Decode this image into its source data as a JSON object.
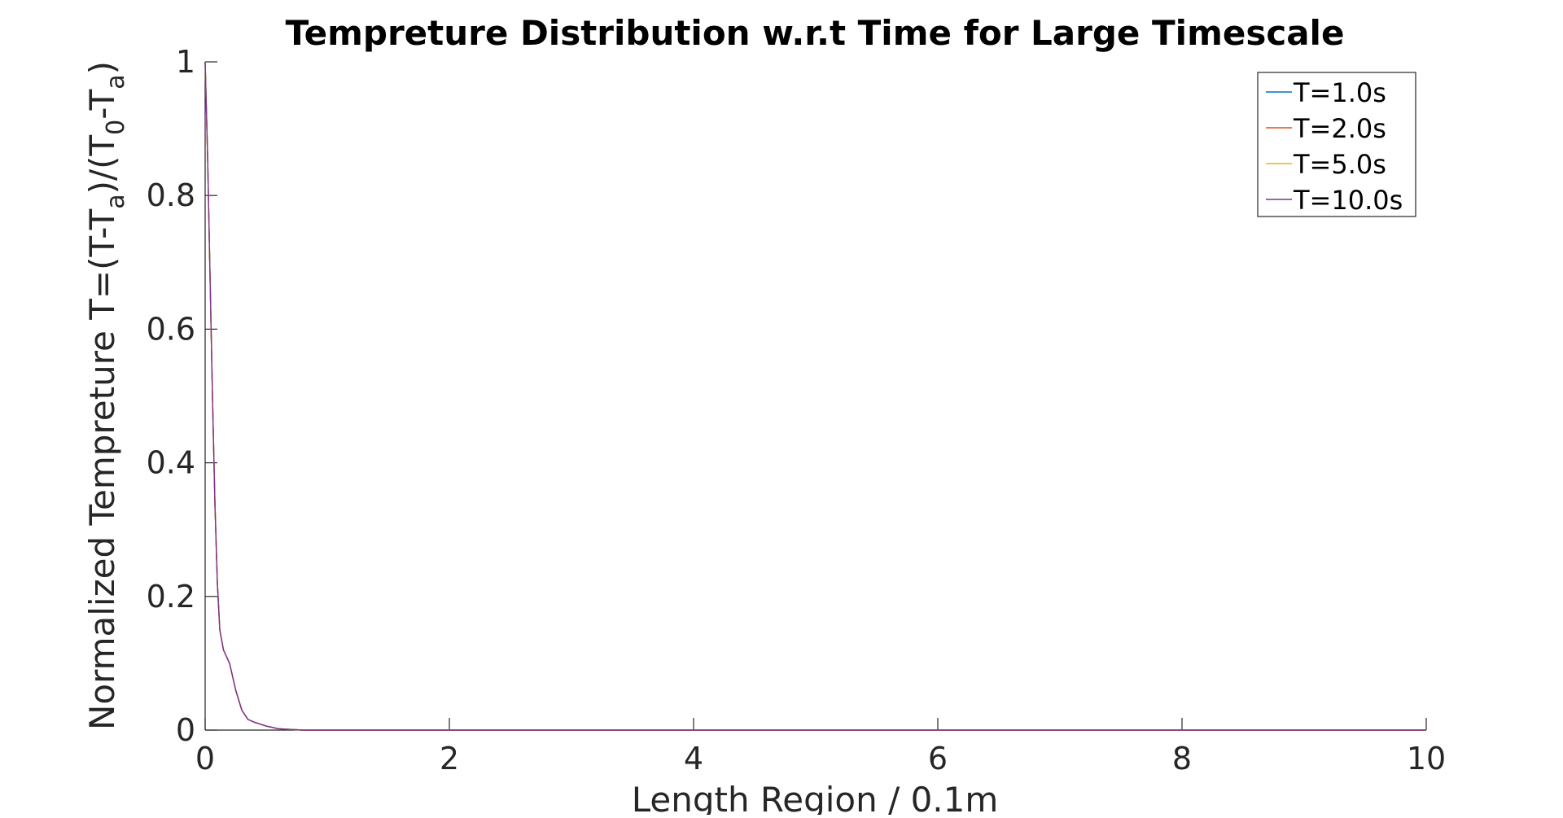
{
  "chart_data": {
    "type": "line",
    "title": "Tempreture Distribution w.r.t Time for Large Timescale",
    "xlabel": "Length Region / 0.1m",
    "ylabel": {
      "parts": [
        {
          "text": "Normalized Tempreture T=(T-T",
          "sub": false
        },
        {
          "text": "a",
          "sub": true
        },
        {
          "text": ")/(T",
          "sub": false
        },
        {
          "text": "0",
          "sub": true
        },
        {
          "text": "-T",
          "sub": false
        },
        {
          "text": "a",
          "sub": true
        },
        {
          "text": ")",
          "sub": false
        }
      ]
    },
    "xlim": [
      0,
      10
    ],
    "ylim": [
      0,
      1
    ],
    "xticks": [
      0,
      2,
      4,
      6,
      8,
      10
    ],
    "yticks": [
      0,
      0.2,
      0.4,
      0.6,
      0.8,
      1
    ],
    "xtick_labels": [
      "0",
      "2",
      "4",
      "6",
      "8",
      "10"
    ],
    "ytick_labels": [
      "0",
      "0.2",
      "0.4",
      "0.6",
      "0.8",
      "1"
    ],
    "grid": false,
    "legend_position": "top-right",
    "series": [
      {
        "name": "T=1.0s",
        "color": "#0072BD",
        "x": [
          0,
          0.02,
          0.04,
          0.06,
          0.08,
          0.1,
          0.12,
          0.15,
          0.2,
          0.25,
          0.3,
          0.35,
          0.4,
          0.5,
          0.6,
          0.7,
          0.8,
          1,
          2,
          4,
          6,
          8,
          10
        ],
        "y": [
          1,
          0.86,
          0.68,
          0.5,
          0.34,
          0.22,
          0.15,
          0.12,
          0.1,
          0.06,
          0.03,
          0.016,
          0.012,
          0.006,
          0.002,
          0.001,
          0,
          0,
          0,
          0,
          0,
          0,
          0
        ]
      },
      {
        "name": "T=2.0s",
        "color": "#D95319",
        "x": [
          0,
          0.02,
          0.04,
          0.06,
          0.08,
          0.1,
          0.12,
          0.15,
          0.2,
          0.25,
          0.3,
          0.35,
          0.4,
          0.5,
          0.6,
          0.7,
          0.8,
          1,
          2,
          4,
          6,
          8,
          10
        ],
        "y": [
          1,
          0.86,
          0.68,
          0.5,
          0.34,
          0.22,
          0.15,
          0.12,
          0.1,
          0.06,
          0.03,
          0.016,
          0.012,
          0.006,
          0.002,
          0.001,
          0,
          0,
          0,
          0,
          0,
          0,
          0
        ]
      },
      {
        "name": "T=5.0s",
        "color": "#EDB120",
        "x": [
          0,
          0.02,
          0.04,
          0.06,
          0.08,
          0.1,
          0.12,
          0.15,
          0.2,
          0.25,
          0.3,
          0.35,
          0.4,
          0.5,
          0.6,
          0.7,
          0.8,
          1,
          2,
          4,
          6,
          8,
          10
        ],
        "y": [
          1,
          0.86,
          0.68,
          0.5,
          0.34,
          0.22,
          0.15,
          0.12,
          0.1,
          0.06,
          0.03,
          0.016,
          0.012,
          0.006,
          0.002,
          0.001,
          0,
          0,
          0,
          0,
          0,
          0,
          0
        ]
      },
      {
        "name": "T=10.0s",
        "color": "#7E2F8E",
        "x": [
          0,
          0.02,
          0.04,
          0.06,
          0.08,
          0.1,
          0.12,
          0.15,
          0.2,
          0.25,
          0.3,
          0.35,
          0.4,
          0.5,
          0.6,
          0.7,
          0.8,
          1,
          2,
          4,
          6,
          8,
          10
        ],
        "y": [
          1,
          0.86,
          0.68,
          0.5,
          0.34,
          0.22,
          0.15,
          0.12,
          0.1,
          0.06,
          0.03,
          0.016,
          0.012,
          0.006,
          0.002,
          0.001,
          0,
          0,
          0,
          0,
          0,
          0,
          0
        ]
      }
    ]
  }
}
